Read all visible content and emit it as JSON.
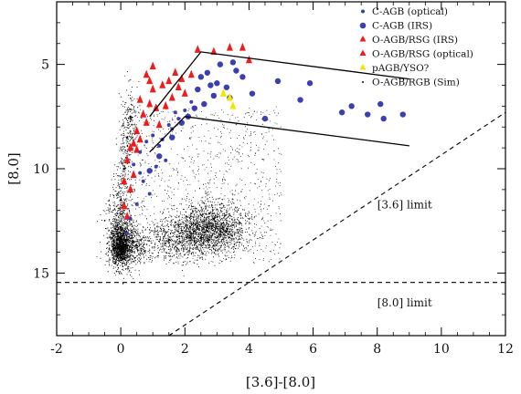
{
  "chart_data": {
    "type": "scatter",
    "title": "",
    "xlabel": "[3.6]-[8.0]",
    "ylabel": "[8.0]",
    "xlim": [
      -2,
      12
    ],
    "ylim": [
      18,
      2
    ],
    "y_inverted": true,
    "xticks": [
      -2,
      0,
      2,
      4,
      6,
      8,
      10,
      12
    ],
    "xtick_labels": [
      "-2",
      "0",
      "2",
      "4",
      "6",
      "8",
      "10",
      "12"
    ],
    "yticks": [
      5,
      10,
      15
    ],
    "ytick_labels": [
      "5",
      "10",
      "15"
    ],
    "grid": false,
    "legend_position": "top-right",
    "series": [
      {
        "name": "C-AGB (optical)",
        "marker": "small-circle",
        "color": "#3b3fb0",
        "points": [
          [
            0.4,
            9.8
          ],
          [
            0.6,
            9.2
          ],
          [
            0.8,
            8.7
          ],
          [
            1.0,
            8.4
          ],
          [
            1.2,
            8.9
          ],
          [
            1.4,
            9.6
          ],
          [
            1.6,
            8.1
          ],
          [
            1.8,
            7.6
          ],
          [
            2.0,
            7.2
          ],
          [
            0.7,
            10.6
          ],
          [
            0.9,
            11.2
          ],
          [
            1.1,
            9.9
          ],
          [
            0.5,
            11.7
          ],
          [
            0.3,
            12.4
          ],
          [
            1.5,
            7.9
          ],
          [
            2.2,
            6.8
          ],
          [
            0.2,
            13.1
          ],
          [
            0.6,
            10.2
          ],
          [
            1.3,
            8.6
          ],
          [
            1.7,
            7.3
          ]
        ]
      },
      {
        "name": "C-AGB (IRS)",
        "marker": "large-circle",
        "color": "#3b3fb0",
        "points": [
          [
            2.4,
            6.2
          ],
          [
            2.7,
            5.4
          ],
          [
            2.9,
            6.5
          ],
          [
            3.1,
            5.0
          ],
          [
            3.3,
            6.1
          ],
          [
            3.5,
            4.9
          ],
          [
            3.8,
            5.6
          ],
          [
            4.1,
            6.4
          ],
          [
            4.5,
            7.6
          ],
          [
            4.9,
            5.8
          ],
          [
            5.6,
            6.7
          ],
          [
            5.9,
            5.9
          ],
          [
            6.9,
            7.3
          ],
          [
            7.2,
            7.0
          ],
          [
            7.7,
            7.4
          ],
          [
            8.1,
            6.9
          ],
          [
            8.2,
            7.6
          ],
          [
            8.8,
            7.4
          ],
          [
            2.3,
            7.1
          ],
          [
            2.6,
            6.9
          ],
          [
            3.0,
            5.9
          ],
          [
            2.8,
            6.0
          ],
          [
            3.6,
            5.3
          ],
          [
            1.6,
            8.5
          ],
          [
            1.9,
            7.8
          ],
          [
            2.1,
            7.5
          ],
          [
            1.2,
            9.4
          ],
          [
            0.9,
            10.1
          ],
          [
            3.4,
            6.6
          ],
          [
            2.5,
            5.6
          ]
        ]
      },
      {
        "name": "O-AGB/RSG (IRS)",
        "marker": "triangle",
        "color": "#ee1c1c",
        "points": [
          [
            4.0,
            4.8
          ],
          [
            3.4,
            4.2
          ],
          [
            2.9,
            4.4
          ],
          [
            2.4,
            4.3
          ],
          [
            3.8,
            4.2
          ],
          [
            2.2,
            5.5
          ],
          [
            1.9,
            5.7
          ],
          [
            2.0,
            6.4
          ],
          [
            1.6,
            6.6
          ],
          [
            1.4,
            7.0
          ],
          [
            1.2,
            7.9
          ],
          [
            0.9,
            6.9
          ],
          [
            0.7,
            7.4
          ],
          [
            0.5,
            8.2
          ],
          [
            0.3,
            9.0
          ]
        ]
      },
      {
        "name": "O-AGB/RSG (optical)",
        "marker": "triangle",
        "color": "#ee1c1c",
        "points": [
          [
            0.2,
            9.6
          ],
          [
            0.4,
            10.3
          ],
          [
            0.5,
            9.1
          ],
          [
            0.6,
            8.6
          ],
          [
            0.8,
            7.8
          ],
          [
            1.0,
            6.2
          ],
          [
            1.1,
            7.1
          ],
          [
            1.3,
            6.0
          ],
          [
            0.3,
            11.0
          ],
          [
            0.1,
            11.8
          ],
          [
            0.2,
            12.3
          ],
          [
            0.4,
            8.8
          ],
          [
            0.6,
            6.7
          ],
          [
            0.8,
            5.5
          ],
          [
            0.9,
            5.8
          ],
          [
            1.0,
            5.1
          ],
          [
            1.5,
            5.8
          ],
          [
            1.7,
            5.4
          ],
          [
            1.8,
            6.1
          ],
          [
            0.1,
            10.6
          ]
        ]
      },
      {
        "name": "pAGB/YSO?",
        "marker": "triangle",
        "color": "#f2e400",
        "points": [
          [
            3.4,
            6.6
          ],
          [
            3.2,
            6.4
          ],
          [
            3.5,
            7.0
          ]
        ]
      },
      {
        "name": "O-AGB/RGB (Sim)",
        "marker": "dot",
        "color": "#000000",
        "points": [
          [
            -0.1,
            13.6
          ],
          [
            0.0,
            13.9
          ],
          [
            0.1,
            13.4
          ],
          [
            0.0,
            12.8
          ],
          [
            0.2,
            13.8
          ],
          [
            2.3,
            13.0
          ],
          [
            2.7,
            12.8
          ],
          [
            3.1,
            13.0
          ],
          [
            2.5,
            13.3
          ],
          [
            2.9,
            12.4
          ],
          [
            1.5,
            13.4
          ],
          [
            0.0,
            11.5
          ],
          [
            0.1,
            10.0
          ],
          [
            0.2,
            8.5
          ],
          [
            0.3,
            7.5
          ]
        ]
      }
    ],
    "boundary_lines": [
      {
        "x": [
          0.9,
          2.5,
          9.0
        ],
        "y": [
          7.5,
          4.4,
          5.7
        ]
      },
      {
        "x": [
          0.9,
          2.0,
          9.0
        ],
        "y": [
          9.2,
          7.5,
          8.9
        ]
      }
    ],
    "limit_lines": [
      {
        "label": "[3.6] limit",
        "style": "dashed",
        "x": [
          1.5,
          12.0
        ],
        "y": [
          18.0,
          7.3
        ]
      },
      {
        "label": "[8.0] limit",
        "style": "dashed",
        "x": [
          -2.0,
          12.0
        ],
        "y": [
          15.45,
          15.45
        ]
      }
    ],
    "annotations": [
      {
        "text": "[3.6] limit",
        "x": 8.0,
        "y": 11.9
      },
      {
        "text": "[8.0] limit",
        "x": 8.0,
        "y": 16.6
      }
    ]
  }
}
